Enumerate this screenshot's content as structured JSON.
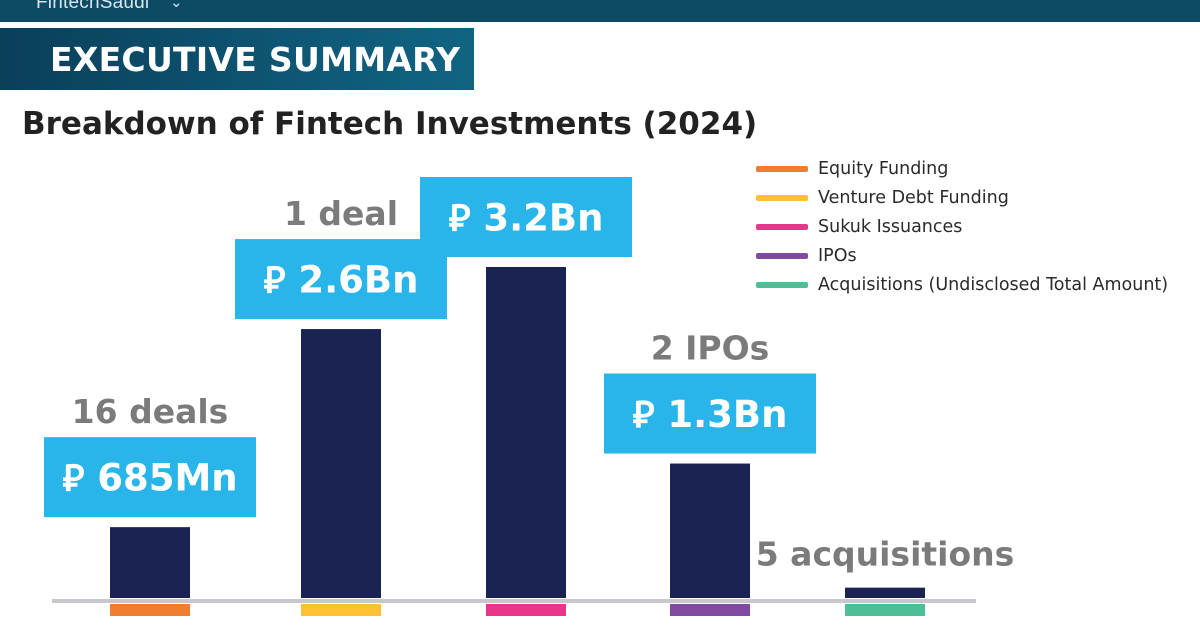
{
  "header": {
    "brand": "FintechSaudi",
    "banner_title": "EXECUTIVE SUMMARY"
  },
  "chart_data": {
    "type": "bar",
    "title": "Breakdown of Fintech Investments (2024)",
    "currency_symbol": "⃁",
    "categories": [
      "Equity Funding",
      "Venture Debt Funding",
      "Sukuk Issuances",
      "IPOs",
      "Acquisitions (Undisclosed Total Amount)"
    ],
    "values_bn": [
      0.685,
      2.6,
      3.2,
      1.3,
      0.1
    ],
    "value_labels": [
      "685Mn",
      "2.6Bn",
      "3.2Bn",
      "1.3Bn",
      ""
    ],
    "count_labels": [
      "16 deals",
      "1 deal",
      "",
      "2 IPOs",
      "5 acquisitions"
    ],
    "legend_placement": "top-right",
    "grid": false,
    "colors": {
      "bar": "#1b2352",
      "label_box": "#29b5ea",
      "count_text": "#7b7b7b",
      "baseline": "#c8c8cc",
      "categories": [
        "#ef7d2f",
        "#fdc131",
        "#e9358b",
        "#7f4aa0",
        "#4dbf97"
      ]
    }
  }
}
